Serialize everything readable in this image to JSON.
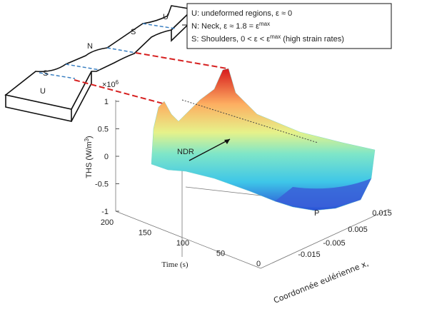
{
  "specimen": {
    "labels": [
      "U",
      "S",
      "N",
      "S",
      "U"
    ]
  },
  "legend": {
    "lines": [
      [
        {
          "t": "U: undeformed regions, ε ≈ 0"
        }
      ],
      [
        {
          "t": "N: Neck, ε ≈ 1.8 = ε"
        },
        {
          "t": "max",
          "sup": true
        }
      ],
      [
        {
          "t": "S: Shoulders, 0 < ε < ε"
        },
        {
          "t": "max",
          "sup": true
        },
        {
          "t": " (high strain rates)"
        }
      ]
    ]
  },
  "plot": {
    "z_multiplier": {
      "base": "×10",
      "exp": "6"
    },
    "z_label": {
      "base": "THS (W/m",
      "exp": "3",
      "end": ")"
    },
    "z_ticks": [
      1,
      0.5,
      0,
      -0.5,
      -1
    ],
    "time_ticks": [
      200,
      150,
      100,
      50,
      0
    ],
    "time_label": "Time (s)",
    "x_ticks": [
      0.015,
      0.005,
      -0.005,
      -0.015
    ],
    "x_label": "Coordonnée eulérienne x,",
    "annotations": [
      "NDR",
      "P"
    ]
  }
}
